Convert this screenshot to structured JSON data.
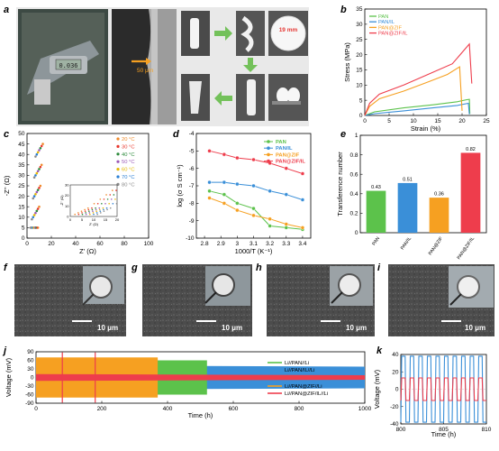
{
  "panels": {
    "a": {
      "label": "a",
      "annotations": [
        "0.036",
        "50 μm",
        "19 mm"
      ]
    },
    "f": {
      "label": "f",
      "scale": "10 μm"
    },
    "g": {
      "label": "g",
      "scale": "10 μm"
    },
    "h": {
      "label": "h",
      "scale": "10 μm"
    },
    "i": {
      "label": "i",
      "scale": "10 μm"
    }
  },
  "colors": {
    "PAN": "#5cc24b",
    "PAN/IL": "#3a8fd8",
    "PAN@ZIF": "#f6a021",
    "PAN@ZIF/IL": "#ee3d4c"
  },
  "chart_data": [
    {
      "id": "b",
      "type": "line",
      "xlabel": "Strain (%)",
      "ylabel": "Stress (MPa)",
      "xlim": [
        0,
        25
      ],
      "ylim": [
        0,
        35
      ],
      "xticks": [
        0,
        5,
        10,
        15,
        20,
        25
      ],
      "yticks": [
        0,
        5,
        10,
        15,
        20,
        25,
        30,
        35
      ],
      "legend_position": "top-left",
      "series": [
        {
          "name": "PAN",
          "x": [
            0,
            2,
            8,
            14,
            19,
            21,
            21.5,
            21.6
          ],
          "y": [
            0,
            1.2,
            2.5,
            3.5,
            4.5,
            5.2,
            5.3,
            0.5
          ]
        },
        {
          "name": "PAN/IL",
          "x": [
            0,
            2,
            8,
            14,
            19,
            21.3,
            21.5
          ],
          "y": [
            0,
            0.6,
            1.5,
            2.5,
            3.3,
            4.0,
            0.4
          ]
        },
        {
          "name": "PAN@ZIF",
          "x": [
            0,
            1,
            3,
            8,
            13,
            17,
            19.5,
            20
          ],
          "y": [
            0,
            3,
            5.5,
            8,
            11,
            13.5,
            16,
            1.5
          ]
        },
        {
          "name": "PAN@ZIF/IL",
          "x": [
            0,
            1,
            3,
            8,
            13,
            18,
            21.5,
            22
          ],
          "y": [
            0,
            4,
            7,
            10,
            13.5,
            17,
            23.5,
            10.5
          ]
        }
      ]
    },
    {
      "id": "c",
      "type": "scatter",
      "xlabel": "Z' (Ω)",
      "ylabel": "-Z'' (Ω)",
      "xlim": [
        0,
        100
      ],
      "ylim": [
        0,
        50
      ],
      "xticks": [
        0,
        20,
        40,
        60,
        80,
        100
      ],
      "yticks": [
        0,
        5,
        10,
        15,
        20,
        25,
        30,
        35,
        40,
        45,
        50
      ],
      "legend_position": "right",
      "series": [
        {
          "name": "20 °C",
          "color": "#f08a2a",
          "x": [
            9,
            10,
            11,
            12,
            13
          ],
          "y": [
            5,
            15,
            25,
            35,
            45
          ]
        },
        {
          "name": "30 °C",
          "color": "#e8382e",
          "x": [
            8,
            9,
            10,
            11,
            12
          ],
          "y": [
            5,
            14,
            24,
            34,
            44
          ]
        },
        {
          "name": "40 °C",
          "color": "#2d8a3c",
          "x": [
            7,
            8,
            9,
            10,
            11
          ],
          "y": [
            5,
            13,
            23,
            33,
            43
          ]
        },
        {
          "name": "50 °C",
          "color": "#9b59b6",
          "x": [
            6,
            7,
            8,
            9,
            10
          ],
          "y": [
            5,
            12,
            22,
            32,
            42
          ]
        },
        {
          "name": "60 °C",
          "color": "#e6b800",
          "x": [
            5,
            6,
            7,
            8,
            9
          ],
          "y": [
            5,
            11,
            21,
            31,
            41
          ]
        },
        {
          "name": "70 °C",
          "color": "#2a7fd4",
          "x": [
            4,
            5,
            6,
            7,
            8
          ],
          "y": [
            5,
            10,
            20,
            30,
            40
          ]
        },
        {
          "name": "80 °C",
          "color": "#8a8a8a",
          "x": [
            3,
            4,
            5,
            6,
            7
          ],
          "y": [
            5,
            9,
            19,
            29,
            39
          ]
        }
      ],
      "inset": {
        "xticks": [
          0,
          5,
          10,
          15,
          20
        ],
        "yticks": [
          0,
          10,
          20,
          30
        ],
        "xlabel": "Z' (Ω)",
        "ylabel": "-Z'' (Ω)"
      }
    },
    {
      "id": "d",
      "type": "line",
      "xlabel": "1000/T (K⁻¹)",
      "ylabel": "log (σ S cm⁻¹)",
      "xlim": [
        2.75,
        3.45
      ],
      "ylim": [
        -10,
        -4
      ],
      "xticks": [
        2.8,
        2.9,
        3.0,
        3.1,
        3.2,
        3.3,
        3.4
      ],
      "yticks": [
        -10,
        -9,
        -8,
        -7,
        -6,
        -5,
        -4
      ],
      "legend_position": "top-right",
      "series": [
        {
          "name": "PAN",
          "x": [
            2.83,
            2.92,
            3.0,
            3.1,
            3.2,
            3.3,
            3.4
          ],
          "y": [
            -7.3,
            -7.5,
            -8.0,
            -8.3,
            -9.3,
            -9.4,
            -9.5
          ]
        },
        {
          "name": "PAN/IL",
          "x": [
            2.83,
            2.92,
            3.0,
            3.1,
            3.2,
            3.3,
            3.4
          ],
          "y": [
            -6.8,
            -6.8,
            -6.9,
            -7.0,
            -7.3,
            -7.5,
            -7.8
          ]
        },
        {
          "name": "PAN@ZIF",
          "x": [
            2.83,
            2.92,
            3.0,
            3.1,
            3.2,
            3.3,
            3.4
          ],
          "y": [
            -7.7,
            -8.0,
            -8.4,
            -8.7,
            -8.9,
            -9.2,
            -9.4
          ]
        },
        {
          "name": "PAN@ZIF/IL",
          "x": [
            2.83,
            2.92,
            3.0,
            3.1,
            3.2,
            3.3,
            3.4
          ],
          "y": [
            -5.0,
            -5.2,
            -5.4,
            -5.5,
            -5.7,
            -6.0,
            -6.3
          ]
        }
      ]
    },
    {
      "id": "e",
      "type": "bar",
      "ylabel": "Transference number",
      "ylim": [
        0,
        1.0
      ],
      "yticks": [
        0,
        0.2,
        0.4,
        0.6,
        0.8,
        1.0
      ],
      "categories": [
        "PAN",
        "PAN/IL",
        "PAN@ZIF",
        "PAN@ZIF/IL"
      ],
      "values": [
        0.43,
        0.51,
        0.36,
        0.82
      ],
      "value_labels": [
        "0.43",
        "0.51",
        "0.36",
        "0.82"
      ]
    },
    {
      "id": "j",
      "type": "line",
      "xlabel": "Time (h)",
      "ylabel": "Voltage (mV)",
      "xlim": [
        0,
        1000
      ],
      "ylim": [
        -90,
        90
      ],
      "xticks": [
        0,
        200,
        400,
        600,
        800,
        1000
      ],
      "yticks": [
        -90,
        -60,
        -30,
        0,
        30,
        60,
        90
      ],
      "series": [
        {
          "name": "Li//PAN//Li",
          "color": "#5cc24b",
          "x": [
            0,
            520
          ],
          "envelope": [
            60,
            60
          ]
        },
        {
          "name": "Li//PAN/IL//Li",
          "color": "#3a8fd8",
          "x": [
            0,
            100,
            300,
            500,
            1000
          ],
          "envelope": [
            45,
            50,
            45,
            40,
            38
          ]
        },
        {
          "name": "Li//PAN@ZIF//Li",
          "color": "#f6a021",
          "x": [
            0,
            370
          ],
          "envelope": [
            70,
            70
          ]
        },
        {
          "name": "Li//PAN@ZIF/IL//Li",
          "color": "#ee3d4c",
          "x": [
            0,
            1000
          ],
          "envelope": [
            12,
            8
          ]
        }
      ],
      "legend_position": "right"
    },
    {
      "id": "k",
      "type": "line",
      "xlabel": "Time (h)",
      "ylabel": "Voltage (mV)",
      "xlim": [
        800,
        810
      ],
      "ylim": [
        -40,
        40
      ],
      "xticks": [
        800,
        805,
        810
      ],
      "yticks": [
        -40,
        -20,
        0,
        20,
        40
      ],
      "series": [
        {
          "name": "PAN/IL",
          "amplitude": 38,
          "period": 1.0
        },
        {
          "name": "PAN@ZIF/IL",
          "amplitude": 13,
          "period": 1.0
        }
      ]
    }
  ]
}
